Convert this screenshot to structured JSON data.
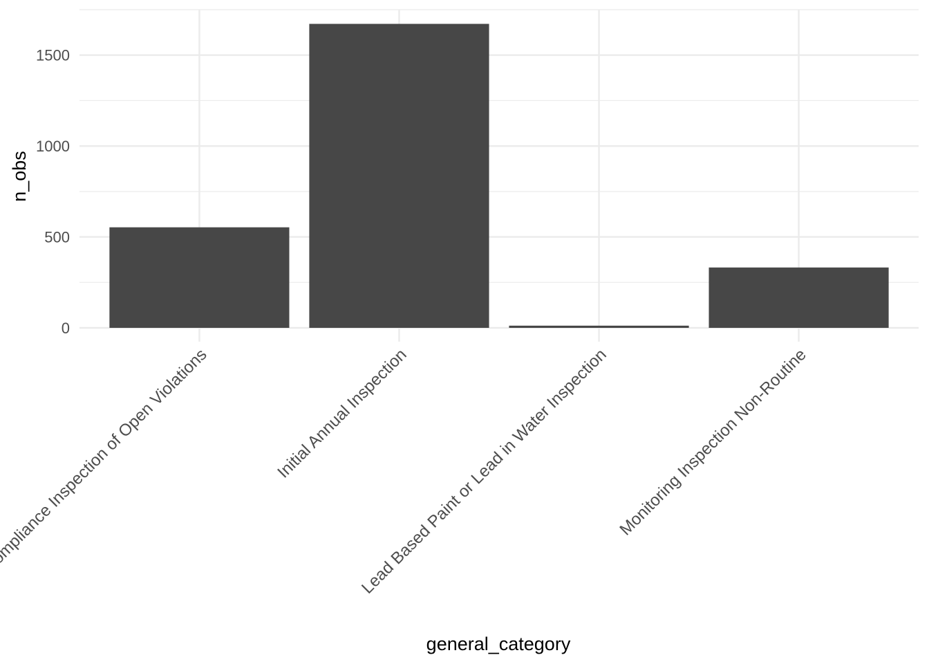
{
  "chart_data": {
    "type": "bar",
    "categories": [
      "Compliance Inspection of Open Violations",
      "Initial Annual Inspection",
      "Lead Based Paint or Lead in Water Inspection",
      "Monitoring Inspection Non-Routine"
    ],
    "values": [
      553,
      1672,
      12,
      332
    ],
    "xlabel": "general_category",
    "ylabel": "n_obs",
    "ylim": [
      0,
      1750
    ],
    "yticks": [
      0,
      500,
      1000,
      1500
    ],
    "yticks_labels": [
      "0",
      "500",
      "1000",
      "1500"
    ],
    "grid": true,
    "bar_color": "#474747",
    "grid_color": "#ebebeb"
  }
}
